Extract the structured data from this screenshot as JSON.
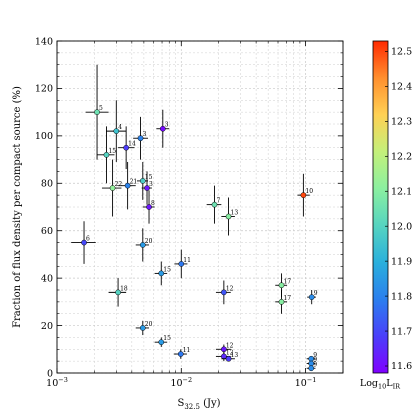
{
  "chart_data": {
    "type": "scatter",
    "title": "",
    "xlabel_main": "S",
    "xlabel_sub": "32.5",
    "xlabel_unit": " (Jy)",
    "ylabel": "Fraction of flux density per compact source (%)",
    "x_scale": "log",
    "xlim": [
      0.001,
      0.2
    ],
    "ylim": [
      0,
      140
    ],
    "x_ticks": [
      {
        "value": 0.001,
        "base": "10",
        "exp": "−3"
      },
      {
        "value": 0.01,
        "base": "10",
        "exp": "−2"
      },
      {
        "value": 0.1,
        "base": "10",
        "exp": "−1"
      }
    ],
    "y_ticks": [
      0,
      20,
      40,
      60,
      80,
      100,
      120,
      140
    ],
    "grid": true,
    "colorbar": {
      "label_main": "Log",
      "label_sub": "10",
      "label_tail": "L",
      "label_tail_sub": "IR",
      "vmin": 11.58,
      "vmax": 12.53,
      "ticks": [
        11.6,
        11.7,
        11.8,
        11.9,
        12.0,
        12.1,
        12.2,
        12.3,
        12.4,
        12.5
      ],
      "colormap": "rainbow",
      "stops": [
        "#8000ff",
        "#4a3ffa",
        "#2b7fee",
        "#2ab0dc",
        "#56d4c0",
        "#8bf0a0",
        "#c4f07a",
        "#ffd154",
        "#ff8f2e",
        "#ff2a00"
      ]
    },
    "points": [
      {
        "label": "5",
        "x": 0.0021,
        "y": 110,
        "xerr_lo": 0.0004,
        "xerr_hi": 0.0005,
        "yerr": 20,
        "c": 12.05
      },
      {
        "label": "4",
        "x": 0.003,
        "y": 102,
        "xerr_lo": 0.0005,
        "xerr_hi": 0.0006,
        "yerr": 13,
        "c": 11.95
      },
      {
        "label": "3",
        "x": 0.0047,
        "y": 99,
        "xerr_lo": 0.0006,
        "xerr_hi": 0.0007,
        "yerr": 9,
        "c": 11.8
      },
      {
        "label": "3",
        "x": 0.0071,
        "y": 103,
        "xerr_lo": 0.0008,
        "xerr_hi": 0.0009,
        "yerr": 8,
        "c": 11.6
      },
      {
        "label": "14",
        "x": 0.0036,
        "y": 95,
        "xerr_lo": 0.0005,
        "xerr_hi": 0.0006,
        "yerr": 9,
        "c": 11.68
      },
      {
        "label": "15",
        "x": 0.0025,
        "y": 92,
        "xerr_lo": 0.0004,
        "xerr_hi": 0.0004,
        "yerr": 12,
        "c": 12.0
      },
      {
        "label": "22",
        "x": 0.0028,
        "y": 78,
        "xerr_lo": 0.0005,
        "xerr_hi": 0.0005,
        "yerr": 12,
        "c": 12.12
      },
      {
        "label": "21",
        "x": 0.0037,
        "y": 79,
        "xerr_lo": 0.0006,
        "xerr_hi": 0.0006,
        "yerr": 10,
        "c": 11.8
      },
      {
        "label": "15",
        "x": 0.0049,
        "y": 81,
        "xerr_lo": 0.0005,
        "xerr_hi": 0.0005,
        "yerr": 8,
        "c": 11.98
      },
      {
        "label": "3",
        "x": 0.0053,
        "y": 78,
        "xerr_lo": 0.0005,
        "xerr_hi": 0.0005,
        "yerr": 7,
        "c": 11.62
      },
      {
        "label": "8",
        "x": 0.0055,
        "y": 70,
        "xerr_lo": 0.0006,
        "xerr_hi": 0.0006,
        "yerr": 7,
        "c": 11.62
      },
      {
        "label": "7",
        "x": 0.0185,
        "y": 71,
        "xerr_lo": 0.0025,
        "xerr_hi": 0.0025,
        "yerr": 8,
        "c": 12.05
      },
      {
        "label": "13",
        "x": 0.024,
        "y": 66,
        "xerr_lo": 0.003,
        "xerr_hi": 0.003,
        "yerr": 8,
        "c": 12.1
      },
      {
        "label": "10",
        "x": 0.096,
        "y": 75,
        "xerr_lo": 0.01,
        "xerr_hi": 0.012,
        "yerr": 9,
        "c": 12.5
      },
      {
        "label": "6",
        "x": 0.00165,
        "y": 55,
        "xerr_lo": 0.00035,
        "xerr_hi": 0.0004,
        "yerr": 9,
        "c": 11.7
      },
      {
        "label": "20",
        "x": 0.0049,
        "y": 54,
        "xerr_lo": 0.0006,
        "xerr_hi": 0.0006,
        "yerr": 7,
        "c": 11.85
      },
      {
        "label": "15",
        "x": 0.0069,
        "y": 42,
        "xerr_lo": 0.0008,
        "xerr_hi": 0.0008,
        "yerr": 5,
        "c": 11.85
      },
      {
        "label": "11",
        "x": 0.01,
        "y": 46,
        "xerr_lo": 0.0012,
        "xerr_hi": 0.0012,
        "yerr": 6,
        "c": 11.78
      },
      {
        "label": "17",
        "x": 0.064,
        "y": 37,
        "xerr_lo": 0.007,
        "xerr_hi": 0.007,
        "yerr": 5,
        "c": 12.1
      },
      {
        "label": "17",
        "x": 0.064,
        "y": 30,
        "xerr_lo": 0.007,
        "xerr_hi": 0.007,
        "yerr": 5,
        "c": 12.1
      },
      {
        "label": "9",
        "x": 0.112,
        "y": 32,
        "xerr_lo": 0.009,
        "xerr_hi": 0.009,
        "yerr": 3,
        "c": 11.82
      },
      {
        "label": "18",
        "x": 0.0031,
        "y": 34,
        "xerr_lo": 0.0005,
        "xerr_hi": 0.0005,
        "yerr": 6,
        "c": 12.0
      },
      {
        "label": "12",
        "x": 0.022,
        "y": 34,
        "xerr_lo": 0.003,
        "xerr_hi": 0.003,
        "yerr": 5,
        "c": 11.72
      },
      {
        "label": "20",
        "x": 0.0049,
        "y": 19,
        "xerr_lo": 0.0006,
        "xerr_hi": 0.0006,
        "yerr": 3,
        "c": 11.85
      },
      {
        "label": "15",
        "x": 0.0069,
        "y": 13,
        "xerr_lo": 0.0008,
        "xerr_hi": 0.0008,
        "yerr": 2,
        "c": 11.85
      },
      {
        "label": "11",
        "x": 0.0099,
        "y": 8,
        "xerr_lo": 0.0012,
        "xerr_hi": 0.0012,
        "yerr": 2,
        "c": 11.78
      },
      {
        "label": "12",
        "x": 0.022,
        "y": 10,
        "xerr_lo": 0.003,
        "xerr_hi": 0.003,
        "yerr": 2,
        "c": 11.62
      },
      {
        "label": "12",
        "x": 0.022,
        "y": 7,
        "xerr_lo": 0.003,
        "xerr_hi": 0.003,
        "yerr": 2,
        "c": 11.65
      },
      {
        "label": "13",
        "x": 0.024,
        "y": 6,
        "xerr_lo": 0.003,
        "xerr_hi": 0.003,
        "yerr": 1,
        "c": 11.68
      },
      {
        "label": "9",
        "x": 0.111,
        "y": 6,
        "xerr_lo": 0.009,
        "xerr_hi": 0.009,
        "yerr": 1,
        "c": 11.82
      },
      {
        "label": "9",
        "x": 0.111,
        "y": 4,
        "xerr_lo": 0.009,
        "xerr_hi": 0.009,
        "yerr": 1,
        "c": 11.82
      },
      {
        "label": "9",
        "x": 0.111,
        "y": 2,
        "xerr_lo": 0.009,
        "xerr_hi": 0.009,
        "yerr": 1,
        "c": 11.82
      }
    ]
  }
}
